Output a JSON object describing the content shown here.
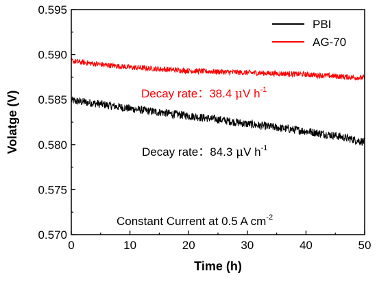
{
  "chart_data": {
    "type": "line",
    "title": "",
    "xlabel": "Time (h)",
    "ylabel": "Volatge (V)",
    "xlim": [
      0,
      50
    ],
    "ylim": [
      0.57,
      0.595
    ],
    "xticks": [
      0,
      10,
      20,
      30,
      40,
      50
    ],
    "xtick_labels": [
      "0",
      "10",
      "20",
      "30",
      "40",
      "50"
    ],
    "yticks": [
      0.57,
      0.575,
      0.58,
      0.585,
      0.59,
      0.595
    ],
    "ytick_labels": [
      "0.570",
      "0.575",
      "0.580",
      "0.585",
      "0.590",
      "0.595"
    ],
    "grid": false,
    "legend_position": "top-right",
    "series": [
      {
        "name": "PBI",
        "color": "#000000",
        "x": [
          0,
          5,
          10,
          15,
          20,
          25,
          30,
          35,
          40,
          45,
          50
        ],
        "y": [
          0.5849,
          0.5845,
          0.584,
          0.5836,
          0.5832,
          0.5828,
          0.5823,
          0.5819,
          0.5815,
          0.581,
          0.5803
        ]
      },
      {
        "name": "AG-70",
        "color": "#ff0000",
        "x": [
          0,
          5,
          10,
          15,
          20,
          25,
          30,
          35,
          40,
          45,
          50
        ],
        "y": [
          0.5893,
          0.5889,
          0.5886,
          0.5884,
          0.5882,
          0.5881,
          0.588,
          0.5879,
          0.5878,
          0.5876,
          0.5874
        ]
      }
    ],
    "annotations": {
      "ag70_rate": {
        "prefix": "Decay rate：38.4 ",
        "mu": "μ",
        "unit": "V h",
        "sup": "-1",
        "color": "#ff0000"
      },
      "pbi_rate": {
        "prefix": "Decay rate：84.3 ",
        "mu": "μ",
        "unit": "V h",
        "sup": "-1",
        "color": "#000000"
      },
      "condition": {
        "prefix": "Constant Current at 0.5 A cm",
        "sup": "-2",
        "color": "#000000"
      }
    }
  }
}
